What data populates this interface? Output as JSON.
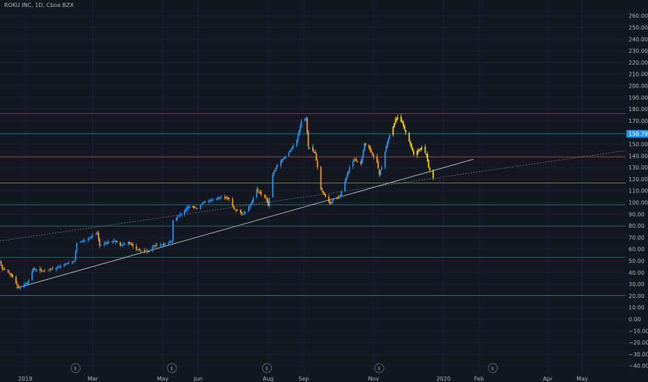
{
  "header": {
    "symbol_title": "ROKU INC, 1D, Cboe BZX"
  },
  "colors": {
    "background": "#131722",
    "up": "#2196f3",
    "down": "#f7a21b",
    "recent": "#f5d60f",
    "hline_teal": "#26a69a",
    "hline_lime": "#cddc39",
    "hline_red": "#ef5350",
    "trendline": "#c8ccd6",
    "price_tag": "#2196f3"
  },
  "chart_data": {
    "type": "candlestick",
    "title": "ROKU INC, 1D, Cboe BZX",
    "y_range": [
      -40,
      265
    ],
    "y_ticks": [
      "260.00",
      "250.00",
      "240.00",
      "230.00",
      "220.00",
      "210.00",
      "200.00",
      "190.00",
      "180.00",
      "170.00",
      "160.00",
      "150.00",
      "140.00",
      "130.00",
      "120.00",
      "110.00",
      "100.00",
      "90.00",
      "80.00",
      "70.00",
      "60.00",
      "50.00",
      "40.00",
      "30.00",
      "20.00",
      "10.00",
      "0.00",
      "−10.00",
      "−20.00",
      "−30.00",
      "−40.00"
    ],
    "x_ticks": [
      "2019",
      "Mar",
      "May",
      "Jun",
      "Aug",
      "Sep",
      "Nov",
      "2020",
      "Feb",
      "Apr",
      "May"
    ],
    "x_tick_dates": [
      "2019-01-01",
      "2019-03-01",
      "2019-05-01",
      "2019-06-01",
      "2019-08-01",
      "2019-09-01",
      "2019-11-01",
      "2020-01-01",
      "2020-02-01",
      "2020-04-01",
      "2020-05-01"
    ],
    "x_range": [
      "2018-12-10",
      "2020-06-08"
    ],
    "current_price": {
      "value": 158.79,
      "label": "158.79"
    },
    "horizontal_levels": [
      {
        "value": 176.3,
        "color": "teal"
      },
      {
        "value": 158.8,
        "color": "teal"
      },
      {
        "value": 139.0,
        "color": "red"
      },
      {
        "value": 116.7,
        "color": "lime"
      },
      {
        "value": 98.0,
        "color": "teal"
      },
      {
        "value": 79.8,
        "color": "teal"
      },
      {
        "value": 53.1,
        "color": "teal"
      },
      {
        "value": 20.4,
        "color": "teal"
      }
    ],
    "trendlines": [
      {
        "style": "solid",
        "from": {
          "date": "2018-12-24",
          "value": 26.5
        },
        "to": {
          "date": "2020-01-27",
          "value": 137.0
        }
      },
      {
        "style": "dotted",
        "from": {
          "date": "2018-12-10",
          "value": 67.0
        },
        "to": {
          "date": "2020-06-08",
          "value": 144.5
        }
      }
    ],
    "earnings_markers": {
      "label": "E",
      "dates": [
        "2019-02-14",
        "2019-05-09",
        "2019-07-31",
        "2019-11-06",
        "2020-02-13"
      ]
    },
    "price_path": [
      [
        "2018-12-10",
        50
      ],
      [
        "2018-12-12",
        43
      ],
      [
        "2018-12-17",
        41
      ],
      [
        "2018-12-21",
        36
      ],
      [
        "2018-12-26",
        27
      ],
      [
        "2019-01-03",
        31
      ],
      [
        "2019-01-08",
        43
      ],
      [
        "2019-01-18",
        41
      ],
      [
        "2019-01-31",
        45
      ],
      [
        "2019-02-07",
        48
      ],
      [
        "2019-02-13",
        50
      ],
      [
        "2019-02-15",
        65
      ],
      [
        "2019-02-25",
        69
      ],
      [
        "2019-03-05",
        74
      ],
      [
        "2019-03-07",
        63
      ],
      [
        "2019-03-14",
        66
      ],
      [
        "2019-03-21",
        67
      ],
      [
        "2019-03-25",
        63
      ],
      [
        "2019-04-01",
        66
      ],
      [
        "2019-04-08",
        60
      ],
      [
        "2019-04-15",
        58
      ],
      [
        "2019-04-19",
        58
      ],
      [
        "2019-04-23",
        63
      ],
      [
        "2019-05-02",
        64
      ],
      [
        "2019-05-09",
        67
      ],
      [
        "2019-05-10",
        85
      ],
      [
        "2019-05-17",
        90
      ],
      [
        "2019-05-24",
        97
      ],
      [
        "2019-05-31",
        95
      ],
      [
        "2019-06-07",
        101
      ],
      [
        "2019-06-14",
        102
      ],
      [
        "2019-06-21",
        105
      ],
      [
        "2019-06-28",
        103
      ],
      [
        "2019-07-02",
        95
      ],
      [
        "2019-07-10",
        90
      ],
      [
        "2019-07-16",
        97
      ],
      [
        "2019-07-22",
        111
      ],
      [
        "2019-07-26",
        107
      ],
      [
        "2019-07-30",
        104
      ],
      [
        "2019-08-01",
        97
      ],
      [
        "2019-08-05",
        124
      ],
      [
        "2019-08-09",
        132
      ],
      [
        "2019-08-19",
        143
      ],
      [
        "2019-08-26",
        153
      ],
      [
        "2019-08-30",
        170
      ],
      [
        "2019-09-03",
        172
      ],
      [
        "2019-09-05",
        148
      ],
      [
        "2019-09-11",
        142
      ],
      [
        "2019-09-13",
        130
      ],
      [
        "2019-09-16",
        112
      ],
      [
        "2019-09-20",
        105
      ],
      [
        "2019-09-24",
        99
      ],
      [
        "2019-09-27",
        103
      ],
      [
        "2019-10-02",
        104
      ],
      [
        "2019-10-07",
        118
      ],
      [
        "2019-10-11",
        130
      ],
      [
        "2019-10-15",
        137
      ],
      [
        "2019-10-21",
        133
      ],
      [
        "2019-10-24",
        150
      ],
      [
        "2019-10-28",
        147
      ],
      [
        "2019-10-31",
        141
      ],
      [
        "2019-11-04",
        134
      ],
      [
        "2019-11-06",
        124
      ],
      [
        "2019-11-08",
        130
      ],
      [
        "2019-11-12",
        148
      ],
      [
        "2019-11-15",
        158
      ],
      [
        "2019-11-18",
        165
      ],
      [
        "2019-11-20",
        171
      ],
      [
        "2019-11-22",
        173
      ],
      [
        "2019-11-26",
        168
      ],
      [
        "2019-11-29",
        160
      ],
      [
        "2019-12-03",
        150
      ],
      [
        "2019-12-06",
        141
      ],
      [
        "2019-12-10",
        145
      ],
      [
        "2019-12-13",
        147
      ],
      [
        "2019-12-17",
        141
      ],
      [
        "2019-12-19",
        130
      ],
      [
        "2019-12-23",
        121
      ]
    ],
    "recent_from": "2019-11-18"
  }
}
